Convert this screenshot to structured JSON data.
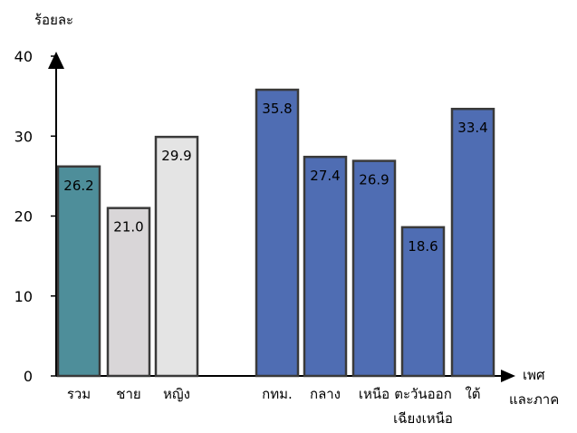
{
  "chart_data": {
    "type": "bar",
    "ylabel": "ร้อยละ",
    "xlabel": [
      "เพศ",
      "และภาค"
    ],
    "ylim": [
      0,
      40
    ],
    "yticks": [
      "0",
      "10",
      "20",
      "30",
      "40"
    ],
    "grid": false,
    "categories": [
      [
        "รวม"
      ],
      [
        "ชาย"
      ],
      [
        "หญิง"
      ],
      [
        "กทม."
      ],
      [
        "กลาง"
      ],
      [
        "เหนือ"
      ],
      [
        "ตะวันออก",
        "เฉียงเหนือ"
      ],
      [
        "ใต้"
      ]
    ],
    "values": [
      26.2,
      21.0,
      29.9,
      35.8,
      27.4,
      26.9,
      18.6,
      33.4
    ],
    "value_labels": [
      "26.2",
      "21.0",
      "29.9",
      "35.8",
      "27.4",
      "26.9",
      "18.6",
      "33.4"
    ],
    "colors": [
      "#4e8e9a",
      "#d9d6d8",
      "#e4e4e4",
      "#4f6db3",
      "#4f6db3",
      "#4f6db3",
      "#4f6db3",
      "#4f6db3"
    ],
    "border_color": "#3a3a3a"
  }
}
